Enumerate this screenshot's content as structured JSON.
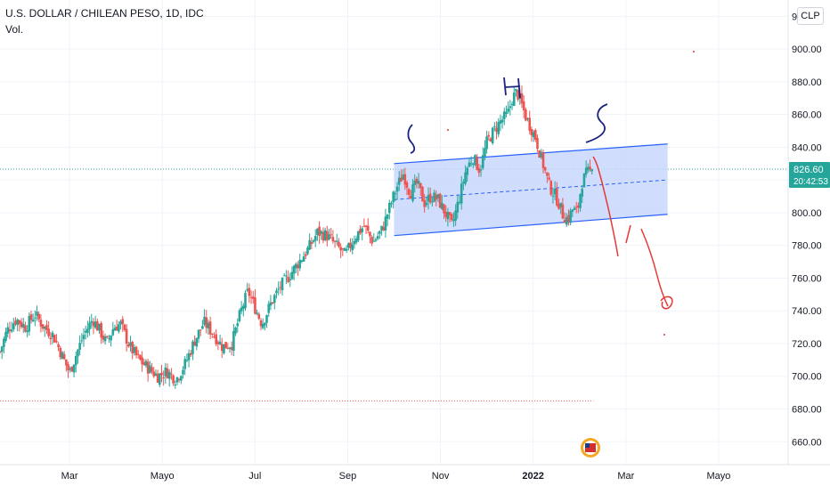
{
  "header": {
    "symbol_title": "U.S. DOLLAR / CHILEAN PESO, 1D, IDC",
    "volume_label": "Vol.",
    "currency_badge": "CLP"
  },
  "colors": {
    "up": "#26a69a",
    "down": "#ef5350",
    "channel_line": "#2962ff",
    "channel_fill": "#c9d7fb",
    "annotation_red": "#e53935",
    "annotation_blue": "#1a237e",
    "price_label_bg": "#26a69a"
  },
  "price_axis": {
    "current_price": "826.60",
    "countdown": "20:42:53"
  },
  "annotations": {
    "left_shoulder": "S",
    "head": "H",
    "right_shoulder": "S"
  },
  "chart_data": {
    "type": "candlestick",
    "title": "U.S. DOLLAR / CHILEAN PESO, 1D, IDC",
    "ylim": [
      646,
      930
    ],
    "y_ticks": [
      "920.00",
      "900.00",
      "880.00",
      "860.00",
      "840.00",
      "820.00",
      "800.00",
      "780.00",
      "760.00",
      "740.00",
      "720.00",
      "700.00",
      "680.00",
      "660.00"
    ],
    "y_tick_values": [
      920,
      900,
      880,
      860,
      840,
      820,
      800,
      780,
      760,
      740,
      720,
      700,
      680,
      660
    ],
    "x_ticks": [
      "Mar",
      "Mayo",
      "Jul",
      "Sep",
      "Nov",
      "2022",
      "Mar",
      "Mayo"
    ],
    "x_tick_months": [
      1.5,
      3.5,
      5.5,
      7.5,
      9.5,
      11.5,
      13.5,
      15.5
    ],
    "xlim_months": [
      0.0,
      17.0
    ],
    "last_candle_month": 12.8,
    "current_price": 826.6,
    "close_path": [
      [
        0.0,
        715
      ],
      [
        0.15,
        728
      ],
      [
        0.35,
        735
      ],
      [
        0.55,
        730
      ],
      [
        0.75,
        738
      ],
      [
        0.95,
        730
      ],
      [
        1.15,
        725
      ],
      [
        1.35,
        712
      ],
      [
        1.5,
        702
      ],
      [
        1.6,
        710
      ],
      [
        1.8,
        725
      ],
      [
        2.0,
        735
      ],
      [
        2.15,
        728
      ],
      [
        2.3,
        720
      ],
      [
        2.45,
        730
      ],
      [
        2.6,
        732
      ],
      [
        2.8,
        718
      ],
      [
        3.0,
        710
      ],
      [
        3.2,
        705
      ],
      [
        3.4,
        700
      ],
      [
        3.6,
        703
      ],
      [
        3.8,
        698
      ],
      [
        4.0,
        708
      ],
      [
        4.2,
        722
      ],
      [
        4.4,
        733
      ],
      [
        4.6,
        726
      ],
      [
        4.8,
        718
      ],
      [
        5.0,
        720
      ],
      [
        5.2,
        740
      ],
      [
        5.35,
        752
      ],
      [
        5.5,
        742
      ],
      [
        5.65,
        732
      ],
      [
        5.85,
        745
      ],
      [
        6.05,
        755
      ],
      [
        6.25,
        762
      ],
      [
        6.45,
        770
      ],
      [
        6.65,
        778
      ],
      [
        6.85,
        788
      ],
      [
        7.05,
        786
      ],
      [
        7.25,
        780
      ],
      [
        7.45,
        774
      ],
      [
        7.65,
        785
      ],
      [
        7.85,
        792
      ],
      [
        8.05,
        782
      ],
      [
        8.25,
        790
      ],
      [
        8.4,
        803
      ],
      [
        8.55,
        815
      ],
      [
        8.7,
        824
      ],
      [
        8.85,
        812
      ],
      [
        9.0,
        818
      ],
      [
        9.15,
        806
      ],
      [
        9.3,
        810
      ],
      [
        9.45,
        808
      ],
      [
        9.6,
        800
      ],
      [
        9.75,
        792
      ],
      [
        9.9,
        808
      ],
      [
        10.05,
        826
      ],
      [
        10.2,
        834
      ],
      [
        10.35,
        826
      ],
      [
        10.5,
        843
      ],
      [
        10.65,
        850
      ],
      [
        10.8,
        856
      ],
      [
        10.95,
        860
      ],
      [
        11.05,
        870
      ],
      [
        11.15,
        874
      ],
      [
        11.25,
        866
      ],
      [
        11.35,
        858
      ],
      [
        11.45,
        852
      ],
      [
        11.55,
        846
      ],
      [
        11.65,
        836
      ],
      [
        11.75,
        826
      ],
      [
        11.85,
        816
      ],
      [
        11.95,
        812
      ],
      [
        12.05,
        806
      ],
      [
        12.15,
        798
      ],
      [
        12.25,
        796
      ],
      [
        12.35,
        802
      ],
      [
        12.45,
        800
      ],
      [
        12.55,
        818
      ],
      [
        12.65,
        824
      ],
      [
        12.8,
        826.6
      ]
    ],
    "channel": {
      "start_month": 8.5,
      "end_month": 14.4,
      "upper": [
        830,
        842
      ],
      "lower": [
        786,
        799
      ],
      "mid": [
        808,
        820
      ]
    },
    "reference_lines": [
      {
        "price": 826.6,
        "style": "dotted",
        "color": "#26a69a"
      },
      {
        "price": 685,
        "style": "dotted",
        "color": "#ef5350"
      }
    ]
  }
}
